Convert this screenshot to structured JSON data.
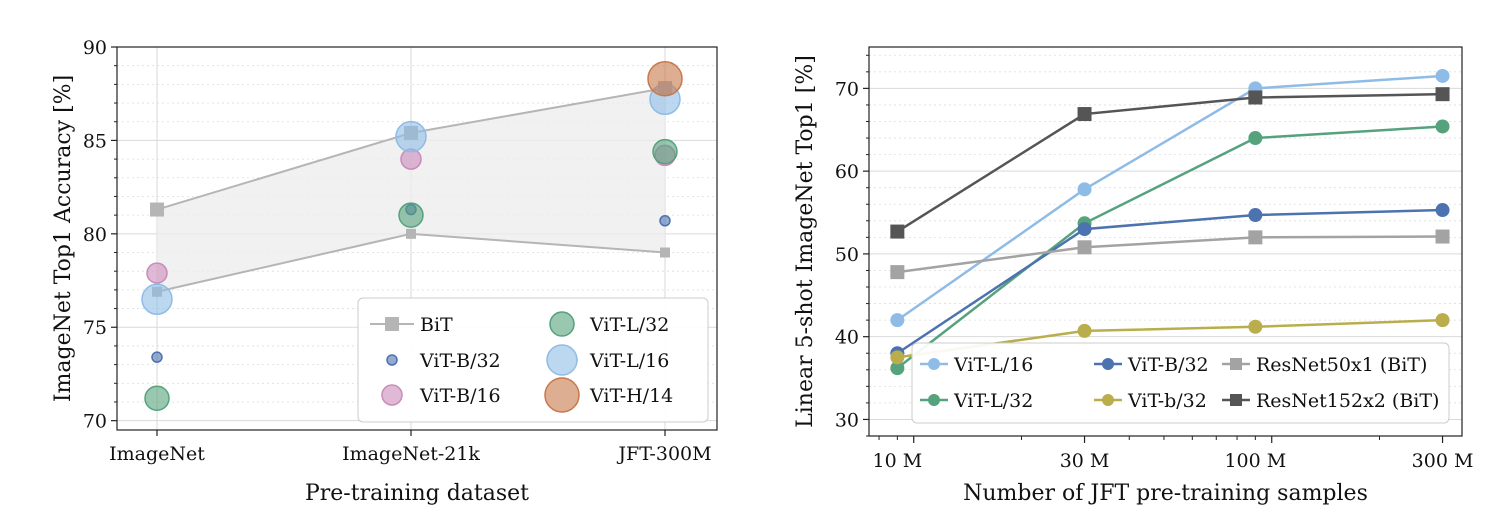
{
  "chart_data": [
    {
      "type": "scatter",
      "xlabel": "Pre-training dataset",
      "ylabel": "ImageNet Top1 Accuracy [%]",
      "categories": [
        "ImageNet",
        "ImageNet-21k",
        "JFT-300M"
      ],
      "ylim": [
        69.5,
        90
      ],
      "yticks": [
        70,
        75,
        80,
        85,
        90
      ],
      "grid": true,
      "legend_position": "bottom-right",
      "bit_band": {
        "name": "BiT",
        "color": "#b5b5b5",
        "upper": [
          81.3,
          85.4,
          87.8
        ],
        "lower": [
          76.9,
          80.0,
          79.0
        ]
      },
      "series": [
        {
          "name": "ViT-B/32",
          "color": "#4c72b0",
          "size": 1,
          "values": [
            73.4,
            81.3,
            80.7
          ]
        },
        {
          "name": "ViT-B/16",
          "color": "#c98bb9",
          "size": 2,
          "values": [
            77.9,
            84.0,
            84.2
          ]
        },
        {
          "name": "ViT-L/32",
          "color": "#55a27c",
          "size": 3,
          "values": [
            71.2,
            81.0,
            84.4
          ]
        },
        {
          "name": "ViT-L/16",
          "color": "#8fbce6",
          "size": 4,
          "values": [
            76.5,
            85.2,
            87.2
          ]
        },
        {
          "name": "ViT-H/14",
          "color": "#c8784a",
          "size": 5,
          "values": [
            null,
            null,
            88.3
          ]
        }
      ],
      "legend": [
        "BiT",
        "ViT-L/32",
        "ViT-B/32",
        "ViT-L/16",
        "ViT-B/16",
        "ViT-H/14"
      ]
    },
    {
      "type": "line",
      "xlabel": "Number of JFT pre-training samples",
      "ylabel": "Linear 5-shot ImageNet Top1 [%]",
      "x": [
        9,
        30,
        90,
        300
      ],
      "xscale": "log",
      "xtick_labels": [
        "10 M",
        "30 M",
        "100 M",
        "300 M"
      ],
      "xtick_values": [
        10,
        30,
        100,
        300
      ],
      "ylim": [
        28,
        75
      ],
      "yticks": [
        30,
        40,
        50,
        60,
        70
      ],
      "grid": true,
      "legend_position": "bottom-center",
      "series": [
        {
          "name": "ViT-L/16",
          "color": "#8fbce6",
          "marker": "circle",
          "values": [
            42.0,
            57.8,
            70.0,
            71.5
          ]
        },
        {
          "name": "ViT-L/32",
          "color": "#55a27c",
          "marker": "circle",
          "values": [
            36.2,
            53.7,
            64.0,
            65.4
          ]
        },
        {
          "name": "ViT-B/32",
          "color": "#4c72b0",
          "marker": "circle",
          "values": [
            38.0,
            53.0,
            54.7,
            55.3
          ]
        },
        {
          "name": "ViT-b/32",
          "color": "#b9ae4b",
          "marker": "circle",
          "values": [
            37.5,
            40.7,
            41.2,
            42.0
          ]
        },
        {
          "name": "ResNet50x1 (BiT)",
          "color": "#a3a3a3",
          "marker": "square",
          "values": [
            47.8,
            50.8,
            52.0,
            52.1
          ]
        },
        {
          "name": "ResNet152x2 (BiT)",
          "color": "#555555",
          "marker": "square",
          "values": [
            52.7,
            66.9,
            68.9,
            69.3
          ]
        }
      ]
    }
  ]
}
